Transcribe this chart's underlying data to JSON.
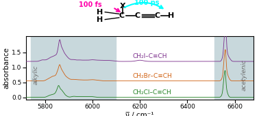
{
  "xlim": [
    5720,
    6680
  ],
  "ylim": [
    -0.08,
    2.05
  ],
  "xlabel": "ν̅ / cm⁻¹",
  "ylabel": "absorbance",
  "colors": {
    "purple": "#7B2D8B",
    "orange": "#D06010",
    "green": "#208020",
    "bg_region": "#c8d8dc",
    "alkylic_region": [
      5740,
      6100
    ],
    "acetylenic_region": [
      6515,
      6685
    ]
  },
  "offsets": {
    "purple": 1.2,
    "orange": 0.55,
    "green": 0.0
  },
  "labels": {
    "purple": "CH₂I–C≡CH",
    "orange": "CH₂Br–C≡CH",
    "green": "CH₂Cl–C≡CH"
  },
  "tick_fontsize": 6.5,
  "label_fontsize": 7.5,
  "legend_fontsize": 6.5
}
